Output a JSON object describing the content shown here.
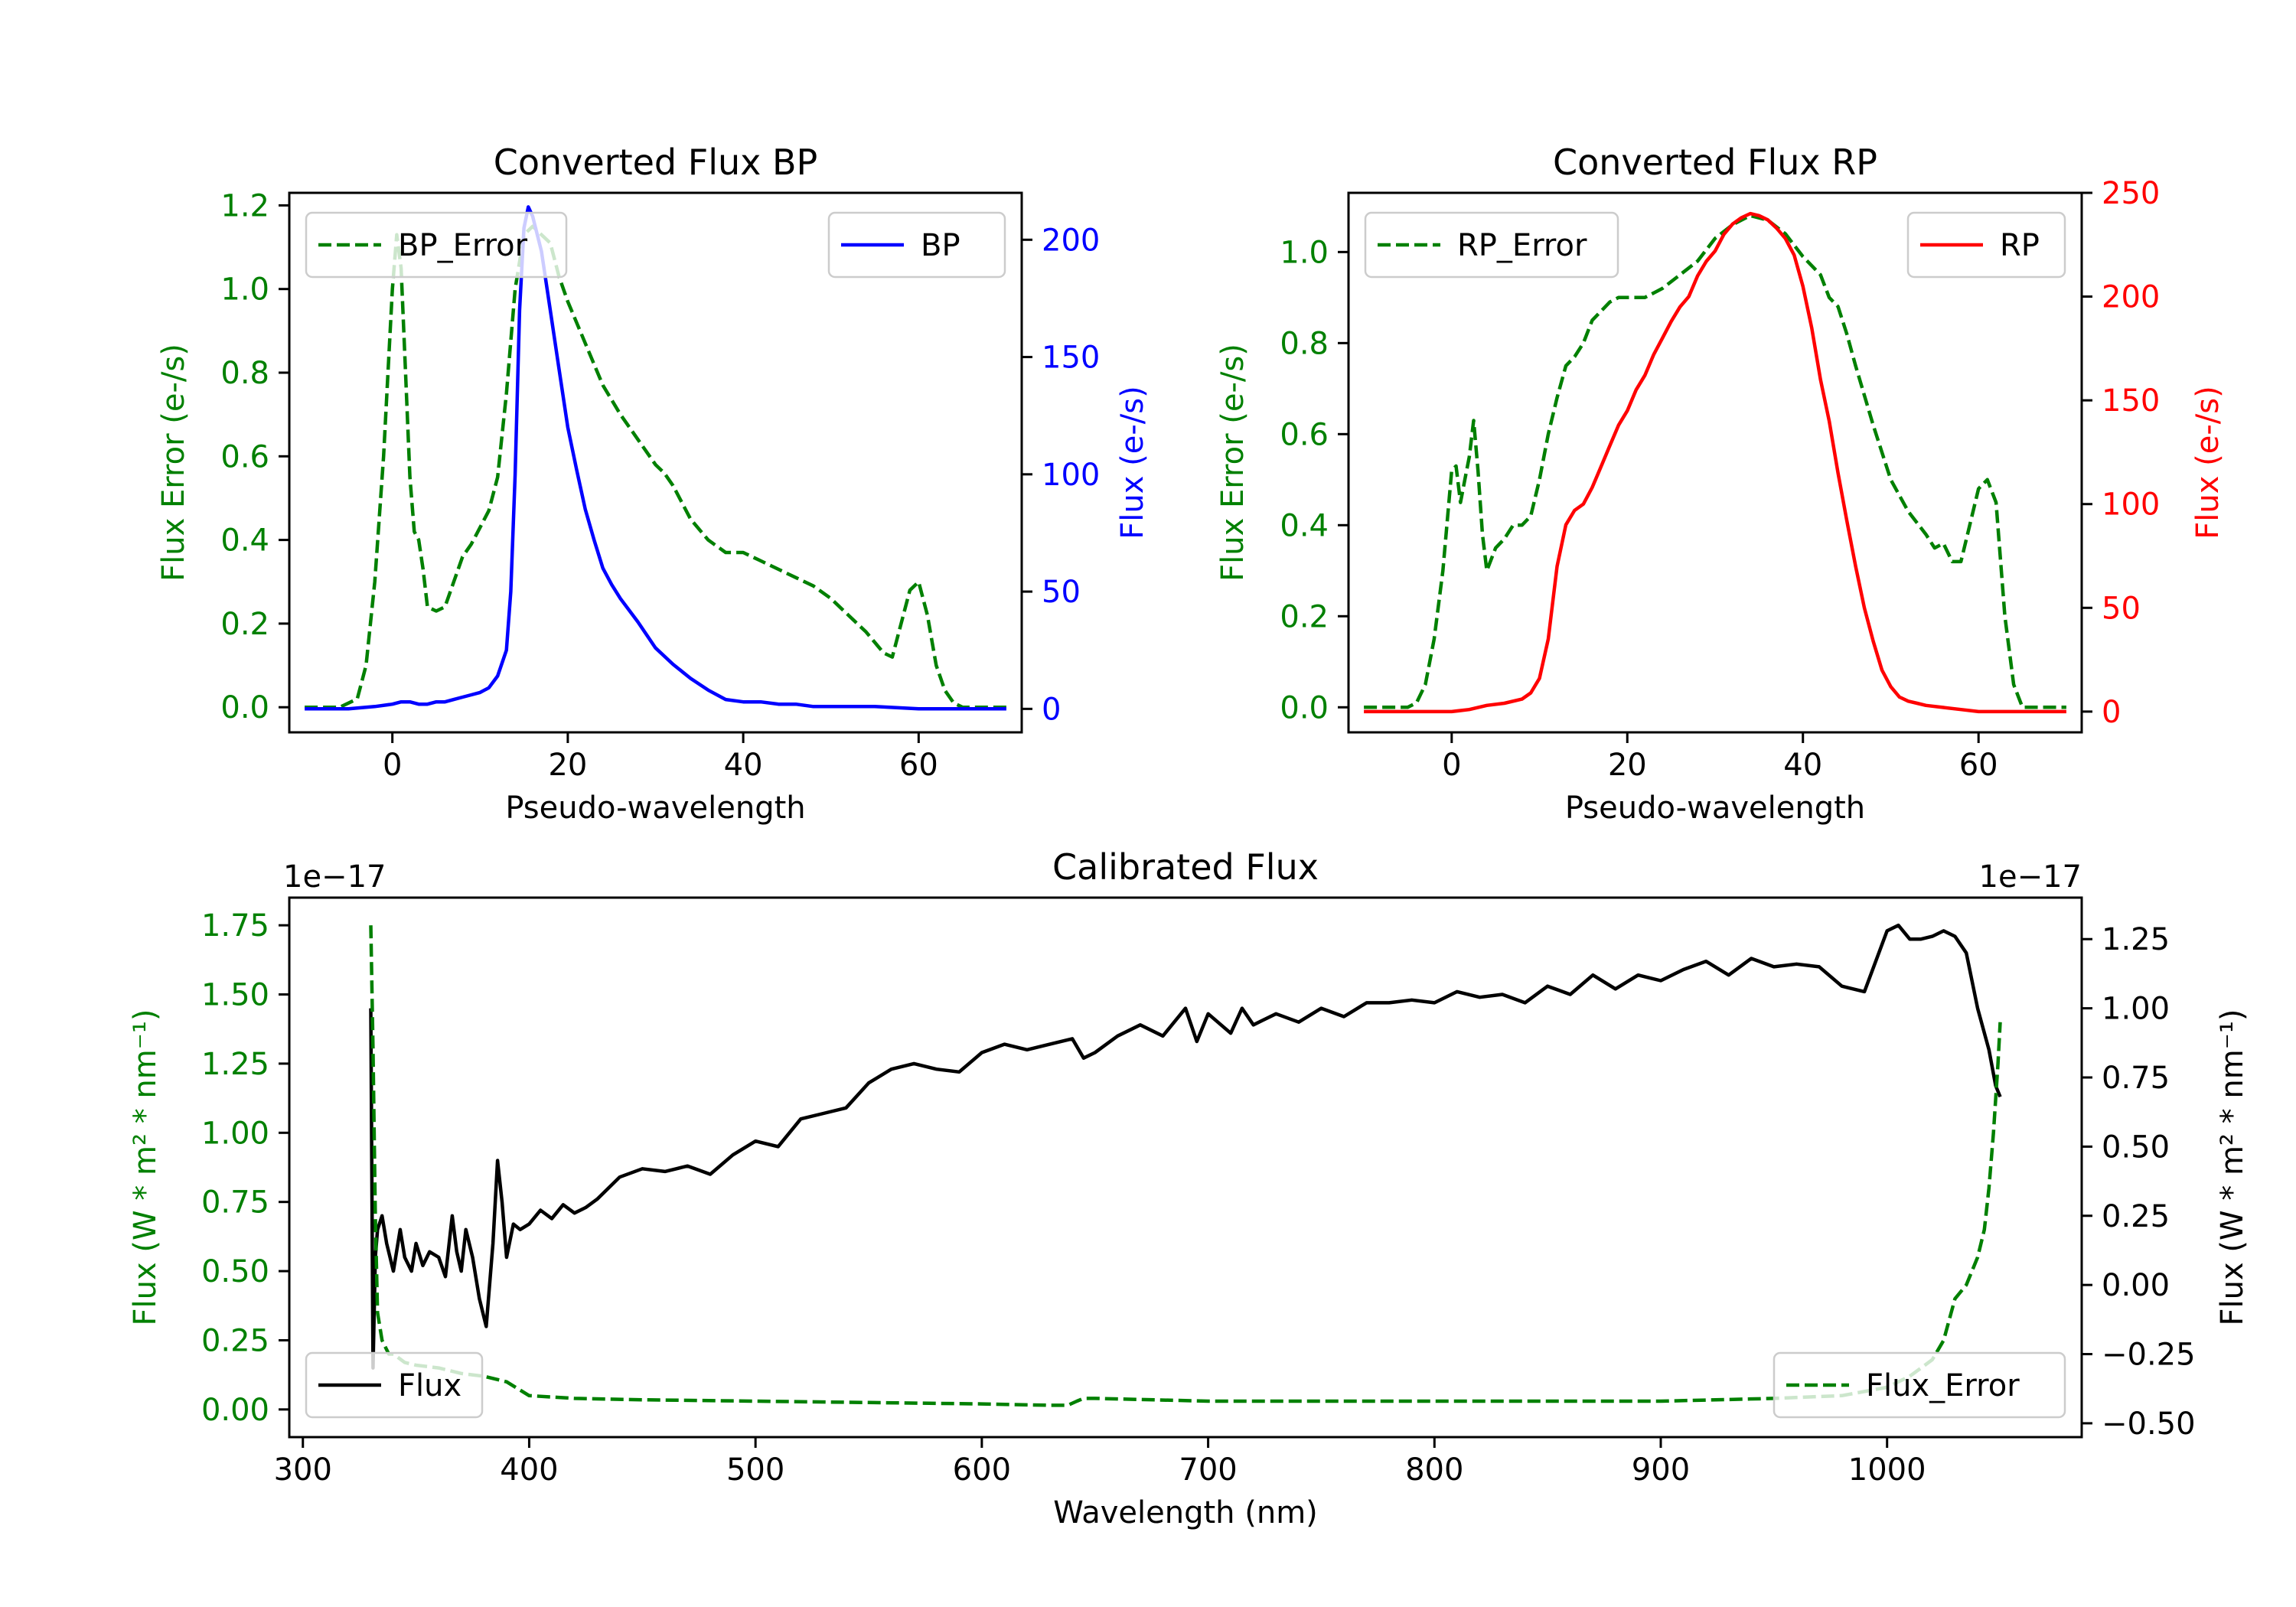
{
  "chart_data": [
    {
      "type": "line",
      "title": "Converted Flux BP",
      "xlabel": "Pseudo-wavelength",
      "ylabel_left": "Flux Error (e-/s)",
      "ylabel_right": "Flux (e-/s)",
      "xlim": [
        -11.75,
        71.75
      ],
      "ylim_left": [
        -0.06,
        1.23
      ],
      "ylim_right": [
        -10,
        220
      ],
      "xticks": [
        0,
        20,
        40,
        60
      ],
      "yticks_left": [
        0.0,
        0.2,
        0.4,
        0.6,
        0.8,
        1.0,
        1.2
      ],
      "yticks_right": [
        0,
        50,
        100,
        150,
        200
      ],
      "left_color": "#008000",
      "right_color": "#0000ff",
      "legend_left": {
        "label": "BP_Error",
        "position": "upper left"
      },
      "legend_right": {
        "label": "BP",
        "position": "upper right"
      },
      "series": [
        {
          "name": "BP_Error",
          "axis": "left",
          "style": "dashed",
          "color": "#008000",
          "x": [
            -10,
            -6,
            -4,
            -3,
            -2,
            -1,
            0,
            0.5,
            1,
            1.5,
            2,
            2.5,
            3,
            3.5,
            4,
            5,
            6,
            7,
            8,
            9,
            10,
            11,
            12,
            13,
            14,
            15,
            16,
            17,
            18,
            19,
            20,
            22,
            24,
            26,
            28,
            30,
            31,
            32,
            34,
            36,
            38,
            40,
            42,
            44,
            46,
            48,
            50,
            52,
            54,
            56,
            57,
            58,
            59,
            60,
            61,
            62,
            63,
            64,
            65,
            67,
            70
          ],
          "values": [
            0.0,
            0.0,
            0.02,
            0.1,
            0.3,
            0.6,
            1.0,
            1.13,
            1.05,
            0.8,
            0.55,
            0.42,
            0.4,
            0.33,
            0.24,
            0.23,
            0.24,
            0.3,
            0.36,
            0.39,
            0.43,
            0.47,
            0.55,
            0.75,
            1.0,
            1.13,
            1.15,
            1.13,
            1.11,
            1.03,
            0.97,
            0.87,
            0.77,
            0.7,
            0.64,
            0.58,
            0.56,
            0.53,
            0.45,
            0.4,
            0.37,
            0.37,
            0.35,
            0.33,
            0.31,
            0.29,
            0.26,
            0.22,
            0.18,
            0.13,
            0.12,
            0.2,
            0.28,
            0.3,
            0.22,
            0.1,
            0.04,
            0.01,
            0.0,
            0.0,
            0.0
          ]
        },
        {
          "name": "BP",
          "axis": "right",
          "style": "solid",
          "color": "#0000ff",
          "x": [
            -10,
            -5,
            -2,
            0,
            1,
            2,
            3,
            4,
            5,
            6,
            7,
            8,
            9,
            10,
            11,
            12,
            13,
            13.5,
            14,
            14.5,
            15,
            15.5,
            16,
            17,
            18,
            19,
            20,
            21,
            22,
            23,
            24,
            25,
            26,
            28,
            30,
            32,
            34,
            36,
            38,
            40,
            42,
            44,
            46,
            48,
            50,
            55,
            60,
            65,
            70
          ],
          "values": [
            0,
            0,
            1,
            2,
            3,
            3,
            2,
            2,
            3,
            3,
            4,
            5,
            6,
            7,
            9,
            14,
            25,
            50,
            100,
            170,
            205,
            214,
            210,
            195,
            170,
            145,
            120,
            102,
            85,
            72,
            60,
            53,
            47,
            37,
            26,
            19,
            13,
            8,
            4,
            3,
            3,
            2,
            2,
            1,
            1,
            1,
            0,
            0,
            0
          ]
        }
      ]
    },
    {
      "type": "line",
      "title": "Converted Flux RP",
      "xlabel": "Pseudo-wavelength",
      "ylabel_left": "Flux Error (e-/s)",
      "ylabel_right": "Flux (e-/s)",
      "xlim": [
        -11.75,
        71.75
      ],
      "ylim_left": [
        -0.055,
        1.13
      ],
      "ylim_right": [
        -10,
        250
      ],
      "xticks": [
        0,
        20,
        40,
        60
      ],
      "yticks_left": [
        0.0,
        0.2,
        0.4,
        0.6,
        0.8,
        1.0
      ],
      "yticks_right": [
        0,
        50,
        100,
        150,
        200,
        250
      ],
      "left_color": "#008000",
      "right_color": "#ff0000",
      "legend_left": {
        "label": "RP_Error",
        "position": "upper left"
      },
      "legend_right": {
        "label": "RP",
        "position": "upper right"
      },
      "series": [
        {
          "name": "RP_Error",
          "axis": "left",
          "style": "dashed",
          "color": "#008000",
          "x": [
            -10,
            -5,
            -4,
            -3,
            -2,
            -1,
            0,
            0.5,
            1,
            1.5,
            2,
            2.5,
            3,
            3.5,
            4,
            5,
            6,
            7,
            8,
            9,
            10,
            11,
            12,
            13,
            14,
            15,
            16,
            17,
            18,
            19,
            20,
            22,
            24,
            26,
            28,
            30,
            32,
            34,
            36,
            38,
            40,
            42,
            43,
            44,
            45,
            46,
            48,
            50,
            52,
            54,
            55,
            56,
            57,
            58,
            59,
            60,
            61,
            62,
            63,
            64,
            65,
            70
          ],
          "values": [
            0.0,
            0.0,
            0.01,
            0.05,
            0.15,
            0.3,
            0.52,
            0.53,
            0.45,
            0.5,
            0.55,
            0.63,
            0.52,
            0.38,
            0.3,
            0.35,
            0.37,
            0.4,
            0.4,
            0.42,
            0.5,
            0.6,
            0.68,
            0.75,
            0.77,
            0.8,
            0.85,
            0.87,
            0.89,
            0.9,
            0.9,
            0.9,
            0.92,
            0.95,
            0.98,
            1.03,
            1.06,
            1.08,
            1.07,
            1.04,
            0.99,
            0.95,
            0.9,
            0.88,
            0.82,
            0.75,
            0.62,
            0.5,
            0.43,
            0.38,
            0.35,
            0.36,
            0.32,
            0.32,
            0.4,
            0.48,
            0.5,
            0.45,
            0.2,
            0.05,
            0.0,
            0.0
          ]
        },
        {
          "name": "RP",
          "axis": "right",
          "style": "solid",
          "color": "#ff0000",
          "x": [
            -10,
            -5,
            0,
            2,
            4,
            6,
            8,
            9,
            10,
            11,
            12,
            13,
            14,
            15,
            16,
            17,
            18,
            19,
            20,
            21,
            22,
            23,
            24,
            25,
            26,
            27,
            28,
            29,
            30,
            31,
            32,
            33,
            34,
            35,
            36,
            37,
            38,
            39,
            40,
            41,
            42,
            43,
            44,
            45,
            46,
            47,
            48,
            49,
            50,
            51,
            52,
            53,
            54,
            56,
            58,
            60,
            62,
            65,
            70
          ],
          "values": [
            0,
            0,
            0,
            1,
            3,
            4,
            6,
            9,
            16,
            35,
            70,
            90,
            97,
            100,
            108,
            118,
            128,
            138,
            145,
            155,
            162,
            172,
            180,
            188,
            195,
            200,
            210,
            217,
            222,
            230,
            235,
            238,
            240,
            239,
            237,
            233,
            228,
            220,
            205,
            185,
            160,
            140,
            115,
            92,
            70,
            50,
            34,
            20,
            12,
            7,
            5,
            4,
            3,
            2,
            1,
            0,
            0,
            0,
            0
          ]
        }
      ]
    },
    {
      "type": "line",
      "title": "Calibrated Flux",
      "xlabel": "Wavelength (nm)",
      "ylabel_left": "Flux (W * m² * nm⁻¹)",
      "ylabel_right": "Flux (W * m² * nm⁻¹)",
      "xlim": [
        294,
        1086
      ],
      "ylim_left": [
        -0.1,
        1.85
      ],
      "ylim_right": [
        -0.55,
        1.4
      ],
      "offset_text_left": "1e−17",
      "offset_text_right": "1e−17",
      "xticks": [
        300,
        400,
        500,
        600,
        700,
        800,
        900,
        1000
      ],
      "yticks_left": [
        0.0,
        0.25,
        0.5,
        0.75,
        1.0,
        1.25,
        1.5,
        1.75
      ],
      "yticks_right": [
        -0.5,
        -0.25,
        0.0,
        0.25,
        0.5,
        0.75,
        1.0,
        1.25
      ],
      "left_color": "#008000",
      "right_color": "#000000",
      "legend_left": {
        "label": "Flux",
        "position": "lower left"
      },
      "legend_right": {
        "label": "Flux_Error",
        "position": "lower right"
      },
      "series": [
        {
          "name": "Flux",
          "axis": "right",
          "style": "solid",
          "color": "#000000",
          "x": [
            330,
            331,
            332,
            333,
            335,
            337,
            340,
            343,
            345,
            348,
            350,
            353,
            356,
            360,
            363,
            366,
            368,
            370,
            372,
            375,
            378,
            381,
            384,
            386,
            388,
            390,
            393,
            396,
            400,
            405,
            410,
            415,
            420,
            425,
            430,
            440,
            450,
            460,
            470,
            480,
            490,
            500,
            510,
            520,
            530,
            540,
            550,
            560,
            570,
            580,
            590,
            600,
            610,
            620,
            630,
            640,
            645,
            650,
            660,
            670,
            680,
            690,
            695,
            700,
            710,
            715,
            720,
            730,
            740,
            750,
            760,
            770,
            780,
            790,
            800,
            810,
            820,
            830,
            840,
            850,
            860,
            870,
            880,
            890,
            900,
            910,
            920,
            930,
            940,
            950,
            960,
            970,
            980,
            990,
            1000,
            1005,
            1010,
            1015,
            1020,
            1025,
            1030,
            1035,
            1040,
            1045,
            1048,
            1050
          ],
          "values": [
            1.0,
            -0.3,
            0.1,
            0.2,
            0.25,
            0.15,
            0.05,
            0.2,
            0.1,
            0.05,
            0.15,
            0.07,
            0.12,
            0.1,
            0.03,
            0.25,
            0.12,
            0.05,
            0.2,
            0.1,
            -0.05,
            -0.15,
            0.15,
            0.45,
            0.3,
            0.1,
            0.22,
            0.2,
            0.22,
            0.27,
            0.24,
            0.29,
            0.26,
            0.28,
            0.31,
            0.39,
            0.42,
            0.41,
            0.43,
            0.4,
            0.47,
            0.52,
            0.5,
            0.6,
            0.62,
            0.64,
            0.73,
            0.78,
            0.8,
            0.78,
            0.77,
            0.84,
            0.87,
            0.85,
            0.87,
            0.89,
            0.82,
            0.84,
            0.9,
            0.94,
            0.9,
            1.0,
            0.88,
            0.98,
            0.91,
            1.0,
            0.94,
            0.98,
            0.95,
            1.0,
            0.97,
            1.02,
            1.02,
            1.03,
            1.02,
            1.06,
            1.04,
            1.05,
            1.02,
            1.08,
            1.05,
            1.12,
            1.07,
            1.12,
            1.1,
            1.14,
            1.17,
            1.12,
            1.18,
            1.15,
            1.16,
            1.15,
            1.08,
            1.06,
            1.28,
            1.3,
            1.25,
            1.25,
            1.26,
            1.28,
            1.26,
            1.2,
            1.0,
            0.85,
            0.72,
            0.68
          ]
        },
        {
          "name": "Flux_Error",
          "axis": "left",
          "style": "dashed",
          "color": "#008000",
          "x": [
            330,
            331,
            332,
            333,
            335,
            338,
            340,
            345,
            350,
            360,
            370,
            380,
            390,
            400,
            420,
            450,
            500,
            550,
            600,
            630,
            638,
            642,
            645,
            650,
            700,
            800,
            900,
            950,
            980,
            1000,
            1010,
            1020,
            1025,
            1030,
            1035,
            1040,
            1043,
            1045,
            1047,
            1049,
            1050
          ],
          "values": [
            1.75,
            1.3,
            0.7,
            0.35,
            0.25,
            0.2,
            0.2,
            0.17,
            0.16,
            0.15,
            0.13,
            0.12,
            0.1,
            0.05,
            0.04,
            0.035,
            0.03,
            0.025,
            0.02,
            0.015,
            0.015,
            0.03,
            0.04,
            0.04,
            0.03,
            0.03,
            0.03,
            0.04,
            0.05,
            0.08,
            0.12,
            0.18,
            0.25,
            0.4,
            0.45,
            0.55,
            0.65,
            0.8,
            1.0,
            1.25,
            1.4
          ]
        }
      ]
    }
  ]
}
